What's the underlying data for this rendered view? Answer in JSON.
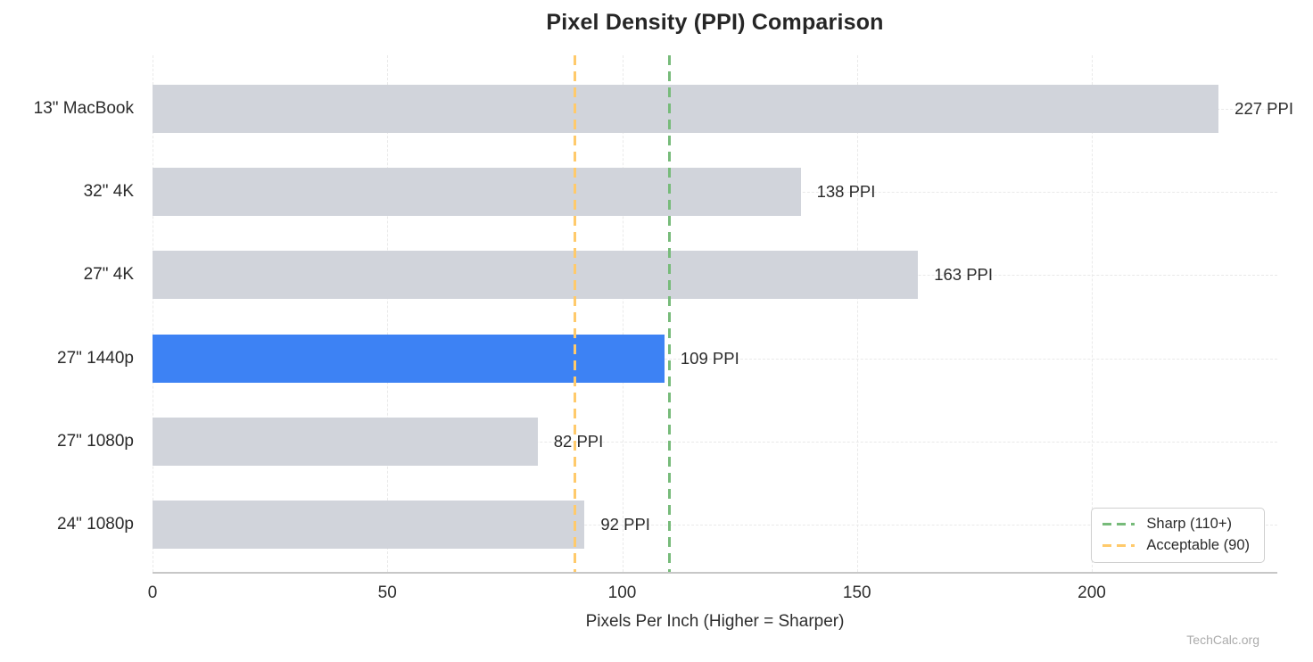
{
  "watermark": "TechCalc.org",
  "chart_data": {
    "type": "bar",
    "orientation": "horizontal",
    "title": "Pixel Density (PPI) Comparison",
    "categories": [
      "13\" MacBook",
      "32\" 4K",
      "27\" 4K",
      "27\" 1440p",
      "27\" 1080p",
      "24\" 1080p"
    ],
    "values": [
      227,
      138,
      163,
      109,
      82,
      92
    ],
    "value_labels": [
      "227 PPI",
      "138 PPI",
      "163 PPI",
      "109 PPI",
      "82 PPI",
      "92 PPI"
    ],
    "highlight_index": 3,
    "bar_color_default": "#d1d4db",
    "bar_color_highlight": "#3d82f4",
    "xlabel": "Pixels Per Inch (Higher = Sharper)",
    "xlim": [
      0,
      239.5
    ],
    "xticks": [
      0,
      50,
      100,
      150,
      200
    ],
    "grid": true,
    "grid_style": "dashed",
    "legend_position": "lower right",
    "ref_lines": [
      {
        "label": "Sharp (110+)",
        "value": 110,
        "color": "#77bb7a",
        "style": "dashed"
      },
      {
        "label": "Acceptable (90)",
        "value": 90,
        "color": "#ffca6b",
        "style": "dashed"
      }
    ]
  }
}
